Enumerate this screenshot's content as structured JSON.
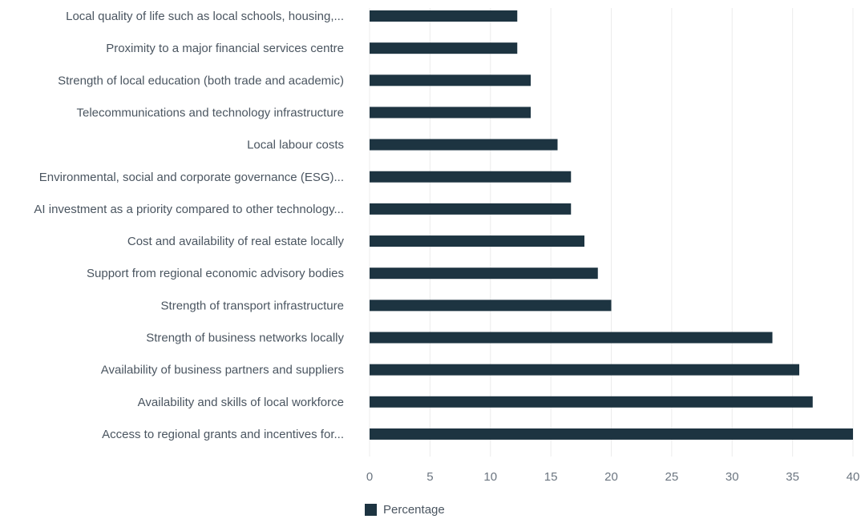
{
  "chart_data": {
    "type": "bar",
    "orientation": "horizontal",
    "categories": [
      "Local quality of life such as local schools, housing,...",
      "Proximity to a major financial services centre",
      "Strength of local education (both trade and academic)",
      "Telecommunications and technology infrastructure",
      "Local labour costs",
      "Environmental, social and corporate governance (ESG)...",
      "AI investment as a priority compared to other technology...",
      "Cost and availability of real estate locally",
      "Support from regional economic advisory bodies",
      "Strength of transport infrastructure",
      "Strength of business networks locally",
      "Availability of business partners and suppliers",
      "Availability and skills of local workforce",
      "Access to regional grants and incentives for..."
    ],
    "series": [
      {
        "name": "Percentage",
        "values": [
          11,
          11,
          12,
          12,
          14,
          15,
          15,
          16,
          17,
          18,
          30,
          32,
          33,
          36
        ]
      }
    ],
    "xticks": [
      0,
      5,
      10,
      15,
      20,
      25,
      30,
      35,
      40
    ],
    "xlim": [
      0,
      36
    ],
    "grid": true,
    "legend": "bottom-left",
    "colors": {
      "bar": "#1d3441",
      "grid": "#ececec"
    }
  }
}
